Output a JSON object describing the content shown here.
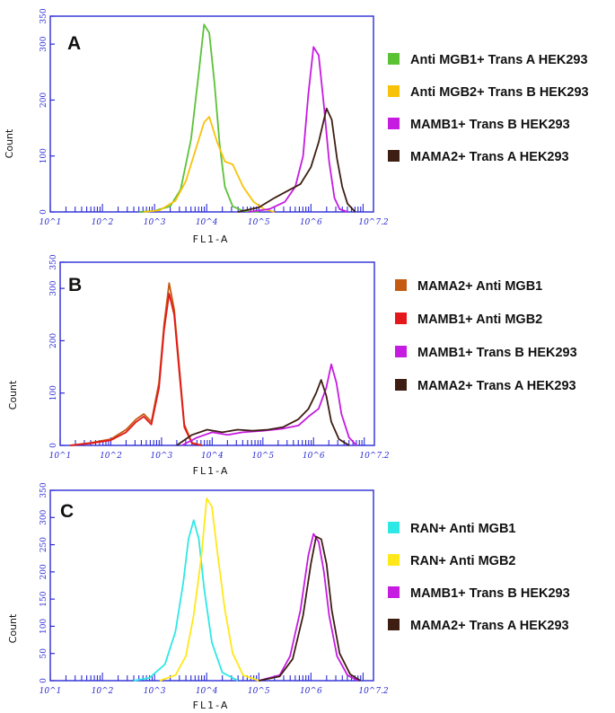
{
  "chart_data": [
    {
      "type": "line",
      "panel_label": "A",
      "xlabel": "FL1-A",
      "ylabel": "Count",
      "x_scale": "log",
      "xlim": [
        1,
        7.2
      ],
      "ylim": [
        0,
        350
      ],
      "x_tick_labels": [
        "10^1",
        "10^2",
        "10^3",
        "10^4",
        "10^5",
        "10^6",
        "10^7.2"
      ],
      "y_tick_labels": [
        "0",
        "100",
        "200",
        "300",
        "350"
      ],
      "y_tick_values": [
        0,
        100,
        200,
        300,
        350
      ],
      "series": [
        {
          "name": "Anti MGB1+ Trans A HEK293",
          "color": "#5BC236",
          "x": [
            2.7,
            3.0,
            3.3,
            3.5,
            3.7,
            3.85,
            3.95,
            4.05,
            4.15,
            4.25,
            4.35,
            4.5,
            4.7,
            5.0
          ],
          "y": [
            0,
            2,
            10,
            40,
            130,
            250,
            335,
            320,
            230,
            120,
            45,
            10,
            2,
            0
          ]
        },
        {
          "name": "Anti MGB2+ Trans B HEK293",
          "color": "#F9C20A",
          "x": [
            2.8,
            3.1,
            3.4,
            3.6,
            3.8,
            3.95,
            4.05,
            4.2,
            4.35,
            4.5,
            4.7,
            4.9,
            5.1,
            5.3
          ],
          "y": [
            0,
            3,
            20,
            55,
            115,
            160,
            170,
            125,
            90,
            85,
            45,
            18,
            5,
            0
          ]
        },
        {
          "name": "MAMB1+ Trans B HEK293",
          "color": "#C61BE0",
          "x": [
            4.8,
            5.2,
            5.5,
            5.7,
            5.85,
            5.95,
            6.05,
            6.15,
            6.25,
            6.35,
            6.45,
            6.55,
            6.7
          ],
          "y": [
            0,
            5,
            18,
            45,
            100,
            210,
            295,
            280,
            190,
            90,
            25,
            5,
            0
          ]
        },
        {
          "name": "MAMA2+ Trans A HEK293",
          "color": "#3E1E13",
          "x": [
            4.6,
            5.0,
            5.3,
            5.6,
            5.8,
            6.0,
            6.15,
            6.3,
            6.4,
            6.5,
            6.6,
            6.7,
            6.85
          ],
          "y": [
            0,
            8,
            25,
            40,
            50,
            80,
            125,
            185,
            165,
            95,
            45,
            15,
            0
          ]
        }
      ]
    },
    {
      "type": "line",
      "panel_label": "B",
      "xlabel": "FL1-A",
      "ylabel": "Count",
      "x_scale": "log",
      "xlim": [
        1,
        7.2
      ],
      "ylim": [
        0,
        350
      ],
      "x_tick_labels": [
        "10^1",
        "10^2",
        "10^3",
        "10^4",
        "10^5",
        "10^6",
        "10^7.2"
      ],
      "y_tick_labels": [
        "0",
        "100",
        "200",
        "300",
        "350"
      ],
      "y_tick_values": [
        0,
        100,
        200,
        300,
        350
      ],
      "series": [
        {
          "name": "MAMA2+ Anti MGB1",
          "color": "#C55A11",
          "x": [
            1.2,
            1.6,
            2.0,
            2.3,
            2.5,
            2.65,
            2.8,
            2.95,
            3.05,
            3.15,
            3.25,
            3.35,
            3.45,
            3.6,
            3.8
          ],
          "y": [
            0,
            5,
            12,
            30,
            50,
            60,
            45,
            120,
            230,
            310,
            260,
            150,
            40,
            5,
            0
          ]
        },
        {
          "name": "MAMB1+ Anti MGB2",
          "color": "#E4181A",
          "x": [
            1.2,
            1.6,
            2.0,
            2.3,
            2.5,
            2.65,
            2.8,
            2.95,
            3.05,
            3.15,
            3.25,
            3.35,
            3.45,
            3.6,
            3.8
          ],
          "y": [
            0,
            4,
            10,
            25,
            45,
            55,
            40,
            110,
            220,
            290,
            250,
            140,
            35,
            4,
            0
          ]
        },
        {
          "name": "MAMB1+ Trans B HEK293",
          "color": "#C61BE0",
          "x": [
            3.4,
            3.7,
            4.0,
            4.3,
            4.6,
            5.0,
            5.4,
            5.7,
            5.9,
            6.1,
            6.25,
            6.35,
            6.45,
            6.55,
            6.7,
            6.85
          ],
          "y": [
            0,
            15,
            25,
            20,
            25,
            28,
            32,
            38,
            55,
            70,
            110,
            155,
            120,
            60,
            15,
            0
          ]
        },
        {
          "name": "MAMA2+ Trans A HEK293",
          "color": "#3E1E13",
          "x": [
            3.3,
            3.6,
            3.9,
            4.2,
            4.5,
            4.8,
            5.1,
            5.4,
            5.7,
            5.9,
            6.05,
            6.15,
            6.25,
            6.35,
            6.5,
            6.7
          ],
          "y": [
            0,
            20,
            30,
            25,
            30,
            28,
            30,
            35,
            50,
            70,
            100,
            125,
            95,
            45,
            12,
            0
          ]
        }
      ]
    },
    {
      "type": "line",
      "panel_label": "C",
      "xlabel": "FL1-A",
      "ylabel": "Count",
      "x_scale": "log",
      "xlim": [
        1,
        7.2
      ],
      "ylim": [
        0,
        350
      ],
      "x_tick_labels": [
        "10^1",
        "10^2",
        "10^3",
        "10^4",
        "10^5",
        "10^6",
        "10^7.2"
      ],
      "y_tick_labels": [
        "0",
        "50",
        "100",
        "150",
        "200",
        "250",
        "300",
        "350"
      ],
      "y_tick_values": [
        0,
        50,
        100,
        150,
        200,
        250,
        300,
        350
      ],
      "series": [
        {
          "name": "RAN+ Anti MGB1",
          "color": "#2EE8E6",
          "x": [
            2.6,
            2.9,
            3.2,
            3.4,
            3.55,
            3.65,
            3.75,
            3.85,
            3.95,
            4.1,
            4.3,
            4.6
          ],
          "y": [
            0,
            5,
            30,
            90,
            180,
            260,
            295,
            260,
            170,
            70,
            15,
            0
          ]
        },
        {
          "name": "RAN+ Anti MGB2",
          "color": "#FFE81A",
          "x": [
            3.1,
            3.4,
            3.6,
            3.75,
            3.9,
            4.0,
            4.1,
            4.2,
            4.35,
            4.5,
            4.7,
            5.0
          ],
          "y": [
            0,
            10,
            45,
            120,
            230,
            335,
            320,
            240,
            130,
            50,
            10,
            0
          ]
        },
        {
          "name": "MAMB1+ Trans B HEK293",
          "color": "#C61BE0",
          "x": [
            5.0,
            5.4,
            5.6,
            5.8,
            5.95,
            6.05,
            6.15,
            6.25,
            6.35,
            6.5,
            6.7,
            6.9
          ],
          "y": [
            0,
            10,
            45,
            130,
            230,
            270,
            255,
            200,
            120,
            45,
            10,
            0
          ]
        },
        {
          "name": "MAMA2+ Trans A HEK293",
          "color": "#3E1E13",
          "x": [
            5.0,
            5.4,
            5.65,
            5.85,
            6.0,
            6.1,
            6.2,
            6.3,
            6.4,
            6.55,
            6.75,
            6.95
          ],
          "y": [
            0,
            8,
            40,
            120,
            215,
            265,
            260,
            215,
            130,
            50,
            12,
            0
          ]
        }
      ]
    }
  ]
}
